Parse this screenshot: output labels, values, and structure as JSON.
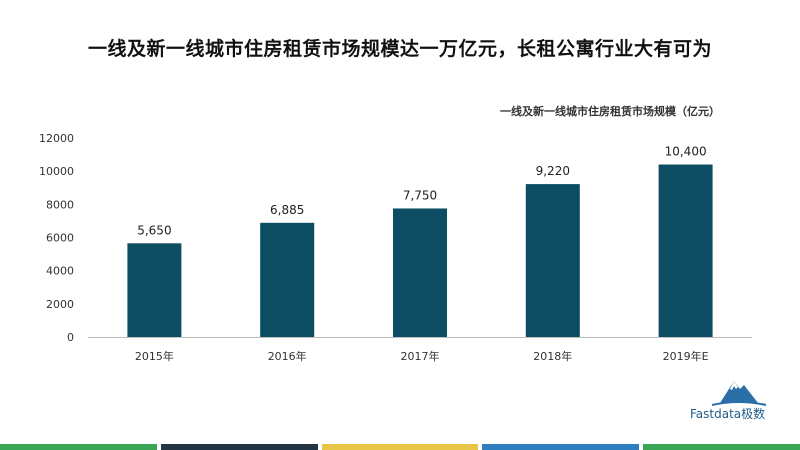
{
  "title": "一线及新一线城市住房租赁市场规模达一万亿元，长租公寓行业大有可为",
  "chart_data": {
    "type": "bar",
    "title": "一线及新一线城市住房租赁市场规模（亿元）",
    "categories": [
      "2015年",
      "2016年",
      "2017年",
      "2018年",
      "2019年E"
    ],
    "values": [
      5650,
      6885,
      7750,
      9220,
      10400
    ],
    "value_labels": [
      "5,650",
      "6,885",
      "7,750",
      "9,220",
      "10,400"
    ],
    "ylim": [
      0,
      12000
    ],
    "yticks": [
      0,
      2000,
      4000,
      6000,
      8000,
      10000,
      12000
    ],
    "xlabel": "",
    "ylabel": "",
    "bar_color": "#0d4d63",
    "grid": false,
    "legend": "none"
  },
  "logo": {
    "text": "Fastdata极数",
    "icon": "mountain-logo-icon",
    "color": "#1f5c8a"
  },
  "footer_colors": [
    "#3aa655",
    "#223544",
    "#e8c547",
    "#2f7fc0",
    "#3aa655"
  ]
}
